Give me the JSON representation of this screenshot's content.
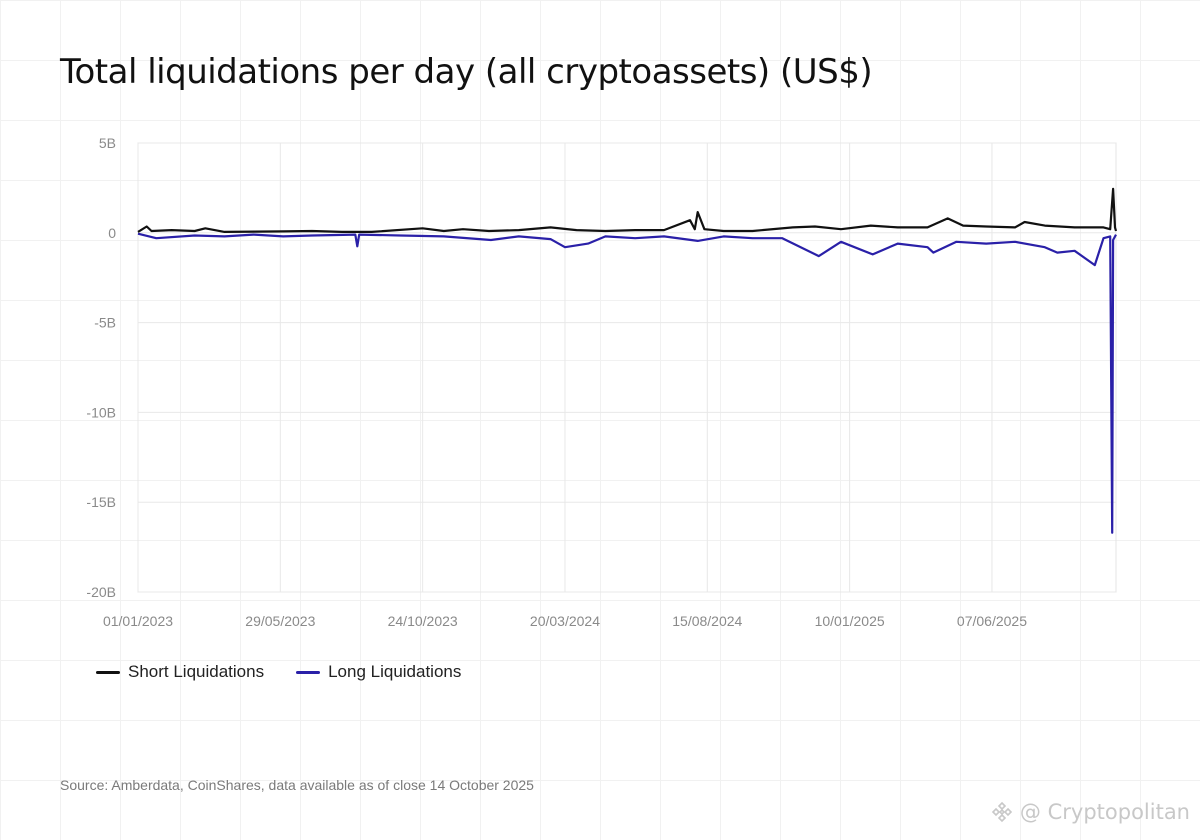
{
  "chart_data": {
    "type": "line",
    "title": "Total liquidations per day (all cryptoassets) (US$)",
    "ylim": [
      -20000000000,
      5000000000
    ],
    "yticks": [
      {
        "value": 5000000000,
        "label": "5B"
      },
      {
        "value": 0,
        "label": "0"
      },
      {
        "value": -5000000000,
        "label": "-5B"
      },
      {
        "value": -10000000000,
        "label": "-10B"
      },
      {
        "value": -15000000000,
        "label": "-15B"
      },
      {
        "value": -20000000000,
        "label": "-20B"
      }
    ],
    "xrange": [
      "2023-01-01",
      "2025-10-14"
    ],
    "xticks": [
      {
        "date": "2023-01-01",
        "label": "01/01/2023"
      },
      {
        "date": "2023-05-29",
        "label": "29/05/2023"
      },
      {
        "date": "2023-10-24",
        "label": "24/10/2023"
      },
      {
        "date": "2024-03-20",
        "label": "20/03/2024"
      },
      {
        "date": "2024-08-15",
        "label": "15/08/2024"
      },
      {
        "date": "2025-01-10",
        "label": "10/01/2025"
      },
      {
        "date": "2025-06-07",
        "label": "07/06/2025"
      }
    ],
    "grid": true,
    "legend_position": "bottom-left",
    "series": [
      {
        "name": "Short Liquidations",
        "color": "#111111",
        "points": [
          [
            "2023-01-01",
            0.05
          ],
          [
            "2023-01-10",
            0.35
          ],
          [
            "2023-01-15",
            0.1
          ],
          [
            "2023-02-05",
            0.15
          ],
          [
            "2023-03-01",
            0.1
          ],
          [
            "2023-03-12",
            0.25
          ],
          [
            "2023-04-01",
            0.05
          ],
          [
            "2023-06-01",
            0.08
          ],
          [
            "2023-07-01",
            0.1
          ],
          [
            "2023-08-01",
            0.05
          ],
          [
            "2023-09-01",
            0.05
          ],
          [
            "2023-10-24",
            0.25
          ],
          [
            "2023-11-15",
            0.1
          ],
          [
            "2023-12-05",
            0.2
          ],
          [
            "2024-01-01",
            0.1
          ],
          [
            "2024-02-01",
            0.15
          ],
          [
            "2024-03-05",
            0.3
          ],
          [
            "2024-04-01",
            0.15
          ],
          [
            "2024-05-01",
            0.1
          ],
          [
            "2024-06-01",
            0.15
          ],
          [
            "2024-07-01",
            0.15
          ],
          [
            "2024-07-28",
            0.7
          ],
          [
            "2024-08-02",
            0.2
          ],
          [
            "2024-08-05",
            1.15
          ],
          [
            "2024-08-12",
            0.2
          ],
          [
            "2024-09-01",
            0.1
          ],
          [
            "2024-10-01",
            0.1
          ],
          [
            "2024-11-12",
            0.3
          ],
          [
            "2024-12-05",
            0.35
          ],
          [
            "2025-01-01",
            0.2
          ],
          [
            "2025-02-01",
            0.4
          ],
          [
            "2025-03-01",
            0.3
          ],
          [
            "2025-04-01",
            0.3
          ],
          [
            "2025-04-22",
            0.8
          ],
          [
            "2025-05-08",
            0.4
          ],
          [
            "2025-06-01",
            0.35
          ],
          [
            "2025-07-01",
            0.3
          ],
          [
            "2025-07-11",
            0.6
          ],
          [
            "2025-08-01",
            0.4
          ],
          [
            "2025-09-01",
            0.3
          ],
          [
            "2025-10-01",
            0.3
          ],
          [
            "2025-10-08",
            0.2
          ],
          [
            "2025-10-11",
            2.45
          ],
          [
            "2025-10-13",
            0.3
          ],
          [
            "2025-10-14",
            0.1
          ]
        ]
      },
      {
        "name": "Long Liquidations",
        "color": "#2a20a8",
        "points": [
          [
            "2023-01-01",
            -0.05
          ],
          [
            "2023-01-20",
            -0.3
          ],
          [
            "2023-03-01",
            -0.15
          ],
          [
            "2023-04-01",
            -0.2
          ],
          [
            "2023-05-01",
            -0.1
          ],
          [
            "2023-06-01",
            -0.2
          ],
          [
            "2023-07-01",
            -0.15
          ],
          [
            "2023-08-15",
            -0.1
          ],
          [
            "2023-08-17",
            -0.75
          ],
          [
            "2023-08-19",
            -0.1
          ],
          [
            "2023-10-01",
            -0.15
          ],
          [
            "2023-11-15",
            -0.2
          ],
          [
            "2024-01-03",
            -0.4
          ],
          [
            "2024-02-01",
            -0.2
          ],
          [
            "2024-03-05",
            -0.35
          ],
          [
            "2024-03-20",
            -0.8
          ],
          [
            "2024-04-13",
            -0.6
          ],
          [
            "2024-05-01",
            -0.2
          ],
          [
            "2024-06-01",
            -0.3
          ],
          [
            "2024-07-01",
            -0.2
          ],
          [
            "2024-08-05",
            -0.45
          ],
          [
            "2024-09-01",
            -0.2
          ],
          [
            "2024-10-01",
            -0.3
          ],
          [
            "2024-11-01",
            -0.3
          ],
          [
            "2024-12-09",
            -1.3
          ],
          [
            "2025-01-01",
            -0.5
          ],
          [
            "2025-02-03",
            -1.2
          ],
          [
            "2025-03-01",
            -0.6
          ],
          [
            "2025-04-01",
            -0.8
          ],
          [
            "2025-04-07",
            -1.1
          ],
          [
            "2025-05-01",
            -0.5
          ],
          [
            "2025-06-01",
            -0.6
          ],
          [
            "2025-07-01",
            -0.5
          ],
          [
            "2025-08-01",
            -0.8
          ],
          [
            "2025-08-14",
            -1.1
          ],
          [
            "2025-09-01",
            -1.0
          ],
          [
            "2025-09-22",
            -1.8
          ],
          [
            "2025-10-01",
            -0.3
          ],
          [
            "2025-10-08",
            -0.2
          ],
          [
            "2025-10-10",
            -16.7
          ],
          [
            "2025-10-11",
            -0.4
          ],
          [
            "2025-10-14",
            -0.1
          ]
        ]
      }
    ]
  },
  "legend": {
    "short_label": "Short Liquidations",
    "long_label": "Long Liquidations"
  },
  "source": "Source: Amberdata, CoinShares, data available as of close 14 October 2025",
  "watermark": "@ Cryptopolitan"
}
